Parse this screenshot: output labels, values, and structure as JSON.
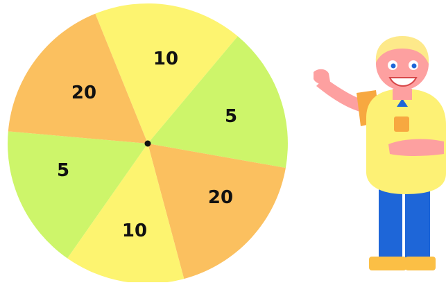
{
  "wheel": {
    "segments": [
      {
        "label": "10",
        "color": "#fdf470"
      },
      {
        "label": "5",
        "color": "#cdf56a"
      },
      {
        "label": "20",
        "color": "#fbc05f"
      },
      {
        "label": "10",
        "color": "#fdf470"
      },
      {
        "label": "5",
        "color": "#cdf56a"
      },
      {
        "label": "20",
        "color": "#fbc05f"
      }
    ],
    "hub_color": "#111111"
  },
  "host": {
    "skin_color": "#fda0a0",
    "hair_color": "#fde98a",
    "shirt_color": "#fdf175",
    "pants_color": "#1e66d8",
    "shoes_color": "#fbbf45",
    "accent_color": "#f7a840"
  }
}
